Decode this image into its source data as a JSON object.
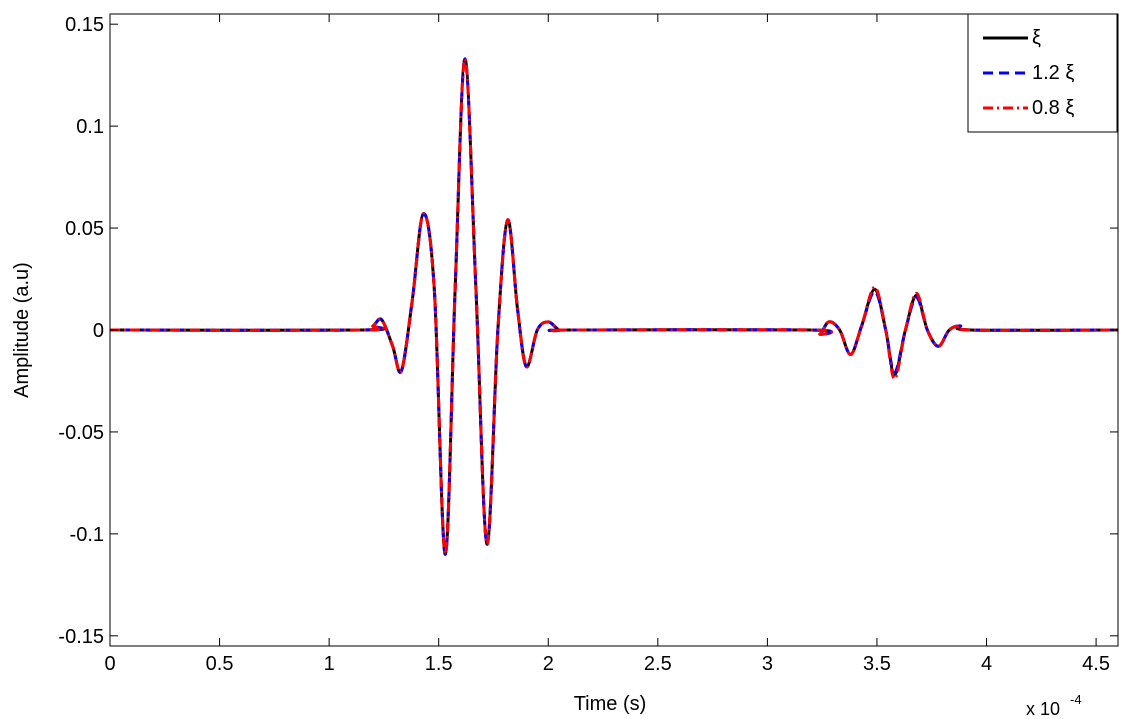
{
  "chart_data": {
    "type": "line",
    "title": "",
    "xlabel": "Time (s)",
    "ylabel": "Amplitude (a.u)",
    "x_multiplier_label": "x 10",
    "x_multiplier_exponent": "-4",
    "xlim": [
      0,
      4.6
    ],
    "ylim": [
      -0.155,
      0.155
    ],
    "x_ticks": [
      0,
      0.5,
      1,
      1.5,
      2,
      2.5,
      3,
      3.5,
      4,
      4.5
    ],
    "x_tick_labels": [
      "0",
      "0.5",
      "1",
      "1.5",
      "2",
      "2.5",
      "3",
      "3.5",
      "4",
      "4.5"
    ],
    "y_ticks": [
      -0.15,
      -0.1,
      -0.05,
      0,
      0.05,
      0.1,
      0.15
    ],
    "y_tick_labels": [
      "-0.15",
      "-0.1",
      "-0.05",
      "0",
      "0.05",
      "0.1",
      "0.15"
    ],
    "grid": false,
    "legend_position": "top-right",
    "series": [
      {
        "name": "ξ",
        "color": "#000000",
        "dash": "solid",
        "x": [
          0,
          1.15,
          1.2,
          1.24,
          1.29,
          1.33,
          1.38,
          1.43,
          1.48,
          1.53,
          1.575,
          1.62,
          1.67,
          1.72,
          1.77,
          1.815,
          1.86,
          1.9,
          1.95,
          2.0,
          2.05,
          2.1,
          3.2,
          3.24,
          3.28,
          3.33,
          3.38,
          3.43,
          3.49,
          3.54,
          3.58,
          3.63,
          3.68,
          3.73,
          3.78,
          3.83,
          3.88,
          3.93,
          4.6
        ],
        "y": [
          0,
          0,
          0.002,
          0.005,
          -0.008,
          -0.02,
          0.015,
          0.057,
          0.02,
          -0.11,
          0.02,
          0.133,
          0.02,
          -0.105,
          0.0,
          0.054,
          0.01,
          -0.018,
          0.0,
          0.004,
          0.0,
          0,
          0,
          -0.002,
          0.004,
          0.0,
          -0.012,
          0.002,
          0.02,
          0.0,
          -0.022,
          0.0,
          0.017,
          0.0,
          -0.008,
          0.0,
          0.002,
          0.0,
          0
        ]
      },
      {
        "name": "1.2 ξ",
        "color": "#0000ff",
        "dash": "dashed",
        "x": [
          0,
          1.15,
          1.2,
          1.24,
          1.29,
          1.33,
          1.38,
          1.43,
          1.48,
          1.53,
          1.575,
          1.62,
          1.67,
          1.72,
          1.77,
          1.815,
          1.86,
          1.9,
          1.95,
          2.0,
          2.05,
          2.1,
          3.2,
          3.24,
          3.28,
          3.33,
          3.38,
          3.43,
          3.49,
          3.54,
          3.58,
          3.63,
          3.68,
          3.73,
          3.78,
          3.83,
          3.88,
          3.93,
          4.6
        ],
        "y": [
          0,
          0,
          0.002,
          0.005,
          -0.008,
          -0.02,
          0.015,
          0.057,
          0.02,
          -0.11,
          0.02,
          0.133,
          0.02,
          -0.105,
          0.0,
          0.054,
          0.01,
          -0.018,
          0.0,
          0.004,
          0.0,
          0,
          0,
          -0.002,
          0.004,
          0.0,
          -0.012,
          0.002,
          0.019,
          0.0,
          -0.021,
          0.0,
          0.016,
          0.0,
          -0.008,
          0.0,
          0.002,
          0.0,
          0
        ]
      },
      {
        "name": "0.8 ξ",
        "color": "#ff0000",
        "dash": "dashdot",
        "x": [
          0,
          1.15,
          1.2,
          1.24,
          1.29,
          1.33,
          1.38,
          1.43,
          1.48,
          1.53,
          1.575,
          1.62,
          1.67,
          1.72,
          1.77,
          1.815,
          1.86,
          1.9,
          1.95,
          2.0,
          2.05,
          2.1,
          3.2,
          3.24,
          3.28,
          3.33,
          3.38,
          3.43,
          3.49,
          3.54,
          3.58,
          3.63,
          3.68,
          3.73,
          3.78,
          3.83,
          3.88,
          3.93,
          4.6
        ],
        "y": [
          0,
          0,
          0.002,
          0.005,
          -0.008,
          -0.02,
          0.015,
          0.057,
          0.02,
          -0.11,
          0.02,
          0.133,
          0.02,
          -0.105,
          0.0,
          0.054,
          0.01,
          -0.018,
          0.0,
          0.004,
          0.0,
          0,
          0,
          -0.002,
          0.004,
          0.0,
          -0.012,
          0.002,
          0.021,
          0.0,
          -0.024,
          0.0,
          0.018,
          0.0,
          -0.008,
          0.0,
          0.002,
          0.0,
          0
        ]
      }
    ]
  }
}
